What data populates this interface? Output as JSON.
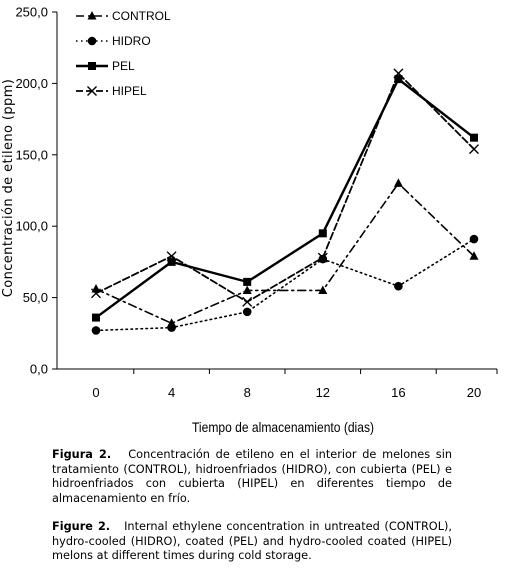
{
  "chart_data": {
    "type": "line",
    "x": [
      0,
      4,
      8,
      12,
      16,
      20
    ],
    "categories": [
      "0",
      "4",
      "8",
      "12",
      "16",
      "20"
    ],
    "series": [
      {
        "name": "CONTROL",
        "values": [
          56,
          32,
          55,
          55,
          130,
          79
        ],
        "dash": "6,4",
        "marker": "triangle",
        "color": "#000000"
      },
      {
        "name": "HIDRO",
        "values": [
          27,
          29,
          40,
          77,
          58,
          91
        ],
        "dash": "1.5,3.5",
        "marker": "circle",
        "color": "#000000"
      },
      {
        "name": "PEL",
        "values": [
          36,
          75,
          61,
          95,
          203,
          162
        ],
        "dash": "",
        "marker": "square",
        "color": "#000000"
      },
      {
        "name": "HIPEL",
        "values": [
          53,
          79,
          47,
          78,
          207,
          154
        ],
        "dash": "7,3",
        "marker": "x",
        "color": "#000000"
      }
    ],
    "title": "",
    "xlabel": "Tiempo de almacenamiento (dias)",
    "ylabel": "Concentración de etileno (ppm)",
    "ylim": [
      0,
      250
    ],
    "yticks": [
      "0,0",
      "50,0",
      "100,0",
      "150,0",
      "200,0",
      "250,0"
    ],
    "ytick_values": [
      0,
      50,
      100,
      150,
      200,
      250
    ],
    "grid": false,
    "legend_placement": "top-left"
  },
  "caption_es": {
    "label": "Figura 2.",
    "text": "Concentración de etileno en el interior de melones sin tratamiento (CONTROL), hidroenfriados (HIDRO), con cubierta (PEL) e hidroenfriados con cubierta (HIPEL) en diferentes tiempo de almacenamiento en frío."
  },
  "caption_en": {
    "label": "Figure 2.",
    "text": "Internal ethylene concentration in untreated (CONTROL), hydro-cooled (HIDRO), coated (PEL) and hydro-cooled coated (HIPEL) melons at different times during cold storage."
  }
}
